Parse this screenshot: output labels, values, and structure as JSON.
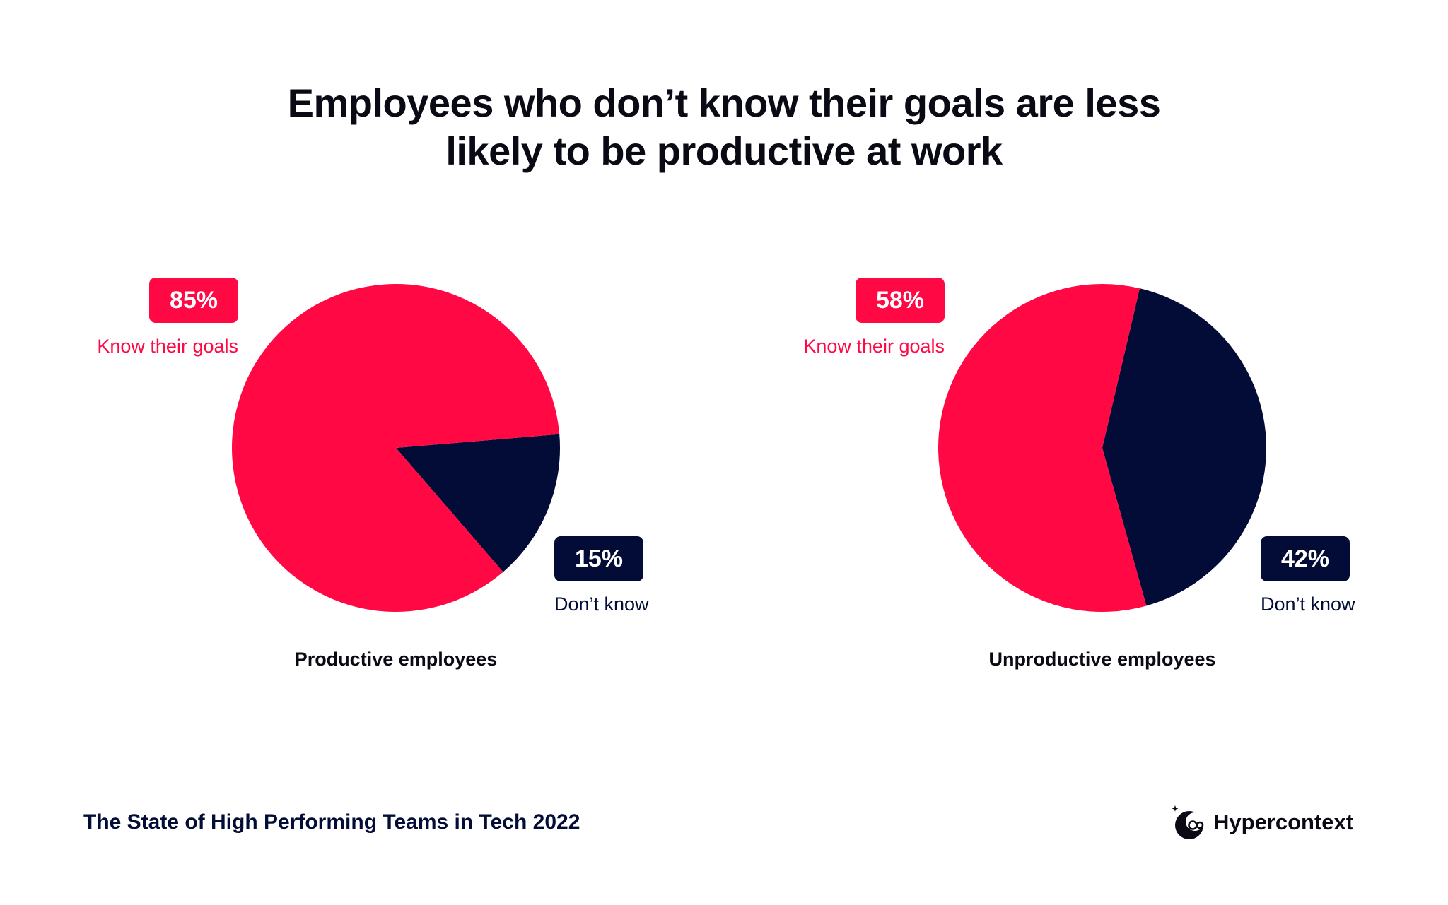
{
  "title_line1": "Employees who don’t know their goals are less",
  "title_line2": "likely to be productive at work",
  "colors": {
    "know": "#ff0844",
    "dont_know": "#020c36"
  },
  "chart_data": [
    {
      "type": "pie",
      "title": "Productive employees",
      "slices": [
        {
          "label": "Know their goals",
          "value": 85,
          "display": "85%"
        },
        {
          "label": "Don’t know",
          "value": 15,
          "display": "15%"
        }
      ]
    },
    {
      "type": "pie",
      "title": "Unproductive employees",
      "slices": [
        {
          "label": "Know their goals",
          "value": 58,
          "display": "58%"
        },
        {
          "label": "Don’t know",
          "value": 42,
          "display": "42%"
        }
      ]
    }
  ],
  "footer": {
    "source": "The State of High Performing Teams in Tech 2022",
    "brand_name": "Hypercontext",
    "brand_icon": "hypercontext-logo-icon"
  }
}
